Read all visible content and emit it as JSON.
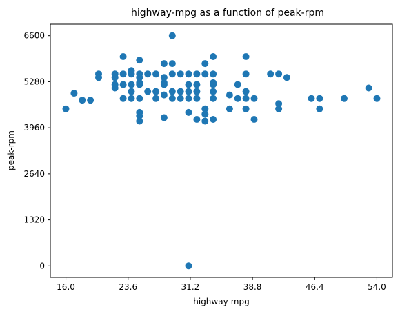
{
  "chart_data": {
    "type": "scatter",
    "title": "highway-mpg as a function of peak-rpm",
    "xlabel": "highway-mpg",
    "ylabel": "peak-rpm",
    "xlim": [
      14.1,
      55.9
    ],
    "ylim": [
      -330,
      6930
    ],
    "x_ticks": [
      16.0,
      23.6,
      31.2,
      38.8,
      46.4,
      54.0
    ],
    "x_tick_labels": [
      "16.0",
      "23.6",
      "31.2",
      "38.8",
      "46.4",
      "54.0"
    ],
    "y_ticks": [
      0,
      1320,
      2640,
      3960,
      5280,
      6600
    ],
    "y_tick_labels": [
      "0",
      "1320",
      "2640",
      "3960",
      "5280",
      "6600"
    ],
    "grid": false,
    "marker_color": "#1f77b4",
    "points": [
      [
        16,
        4500
      ],
      [
        17,
        4950
      ],
      [
        18,
        4750
      ],
      [
        19,
        4750
      ],
      [
        20,
        5500
      ],
      [
        20,
        5400
      ],
      [
        22,
        5500
      ],
      [
        22,
        5400
      ],
      [
        22,
        5200
      ],
      [
        22,
        5100
      ],
      [
        23,
        6000
      ],
      [
        23,
        5500
      ],
      [
        23,
        5200
      ],
      [
        23,
        4800
      ],
      [
        24,
        5600
      ],
      [
        24,
        5500
      ],
      [
        24,
        5200
      ],
      [
        24,
        5000
      ],
      [
        24,
        4800
      ],
      [
        25,
        5900
      ],
      [
        25,
        5500
      ],
      [
        25,
        5400
      ],
      [
        25,
        5250
      ],
      [
        25,
        5200
      ],
      [
        25,
        4800
      ],
      [
        25,
        4400
      ],
      [
        25,
        4300
      ],
      [
        25,
        4150
      ],
      [
        26,
        5500
      ],
      [
        26,
        5000
      ],
      [
        27,
        5500
      ],
      [
        27,
        5000
      ],
      [
        27,
        4800
      ],
      [
        28,
        5800
      ],
      [
        28,
        5400
      ],
      [
        28,
        5250
      ],
      [
        28,
        5200
      ],
      [
        28,
        4900
      ],
      [
        28,
        4250
      ],
      [
        29,
        6600
      ],
      [
        29,
        5800
      ],
      [
        29,
        5500
      ],
      [
        29,
        5000
      ],
      [
        29,
        4800
      ],
      [
        30,
        5500
      ],
      [
        30,
        5000
      ],
      [
        30,
        4800
      ],
      [
        31,
        5500
      ],
      [
        31,
        5200
      ],
      [
        31,
        5000
      ],
      [
        31,
        4800
      ],
      [
        31,
        4400
      ],
      [
        31,
        0
      ],
      [
        32,
        5500
      ],
      [
        32,
        5200
      ],
      [
        32,
        5000
      ],
      [
        32,
        4800
      ],
      [
        32,
        4200
      ],
      [
        33,
        5800
      ],
      [
        33,
        5500
      ],
      [
        33,
        4500
      ],
      [
        33,
        4350
      ],
      [
        33,
        4150
      ],
      [
        34,
        6000
      ],
      [
        34,
        5500
      ],
      [
        34,
        5250
      ],
      [
        34,
        5200
      ],
      [
        34,
        5000
      ],
      [
        34,
        4800
      ],
      [
        34,
        4200
      ],
      [
        36,
        4900
      ],
      [
        36,
        4500
      ],
      [
        37,
        5200
      ],
      [
        37,
        4800
      ],
      [
        38,
        6000
      ],
      [
        38,
        5500
      ],
      [
        38,
        5000
      ],
      [
        38,
        4800
      ],
      [
        38,
        4500
      ],
      [
        39,
        4800
      ],
      [
        39,
        4200
      ],
      [
        41,
        5500
      ],
      [
        42,
        5500
      ],
      [
        42,
        4650
      ],
      [
        42,
        4500
      ],
      [
        43,
        5400
      ],
      [
        46,
        4800
      ],
      [
        47,
        4800
      ],
      [
        47,
        4500
      ],
      [
        50,
        4800
      ],
      [
        53,
        5100
      ],
      [
        54,
        4800
      ]
    ]
  }
}
